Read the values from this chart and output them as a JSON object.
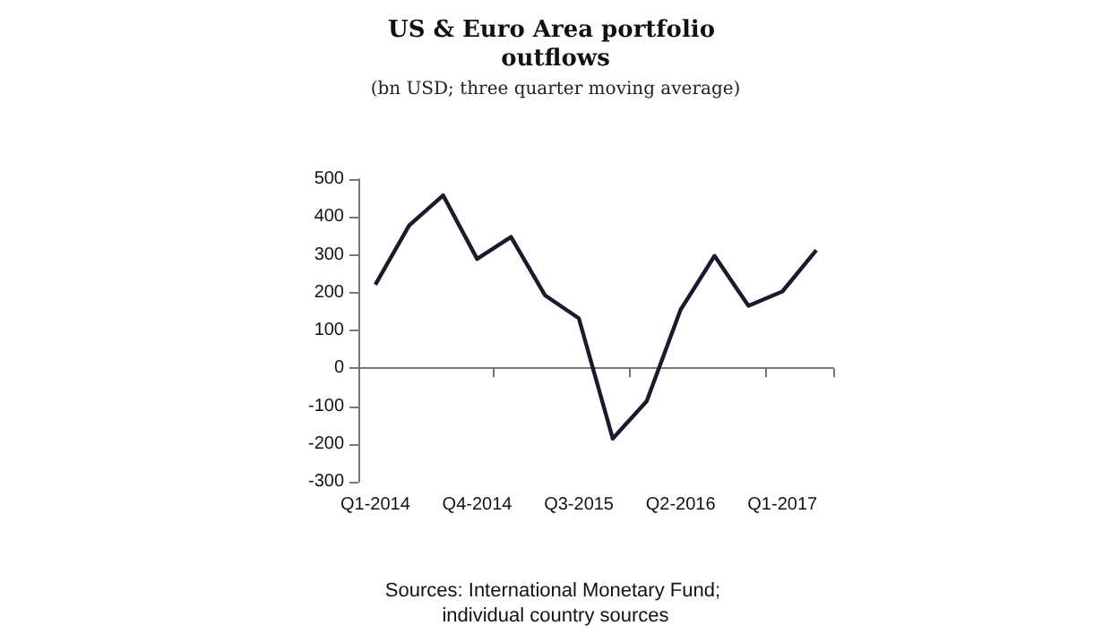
{
  "chart_data": {
    "type": "line",
    "title": "US & Euro Area portfolio outflows",
    "subtitle": "(bn USD; three quarter moving average)",
    "categories": [
      "Q1-2014",
      null,
      null,
      "Q4-2014",
      null,
      null,
      "Q3-2015",
      null,
      null,
      "Q2-2016",
      null,
      null,
      "Q1-2017",
      null
    ],
    "series": [
      {
        "color": "#1a1a2e",
        "values": [
          221,
          378,
          457,
          289,
          347,
          193,
          132,
          -186,
          -87,
          155,
          297,
          165,
          203,
          312
        ]
      }
    ],
    "ylim": [
      -300,
      500
    ],
    "yticks": [
      -300,
      -200,
      -100,
      0,
      100,
      200,
      300,
      400,
      500
    ],
    "marker": "none",
    "line_style": "solid",
    "annotations": [
      "Sources: International Monetary Fund; individual country sources"
    ]
  }
}
